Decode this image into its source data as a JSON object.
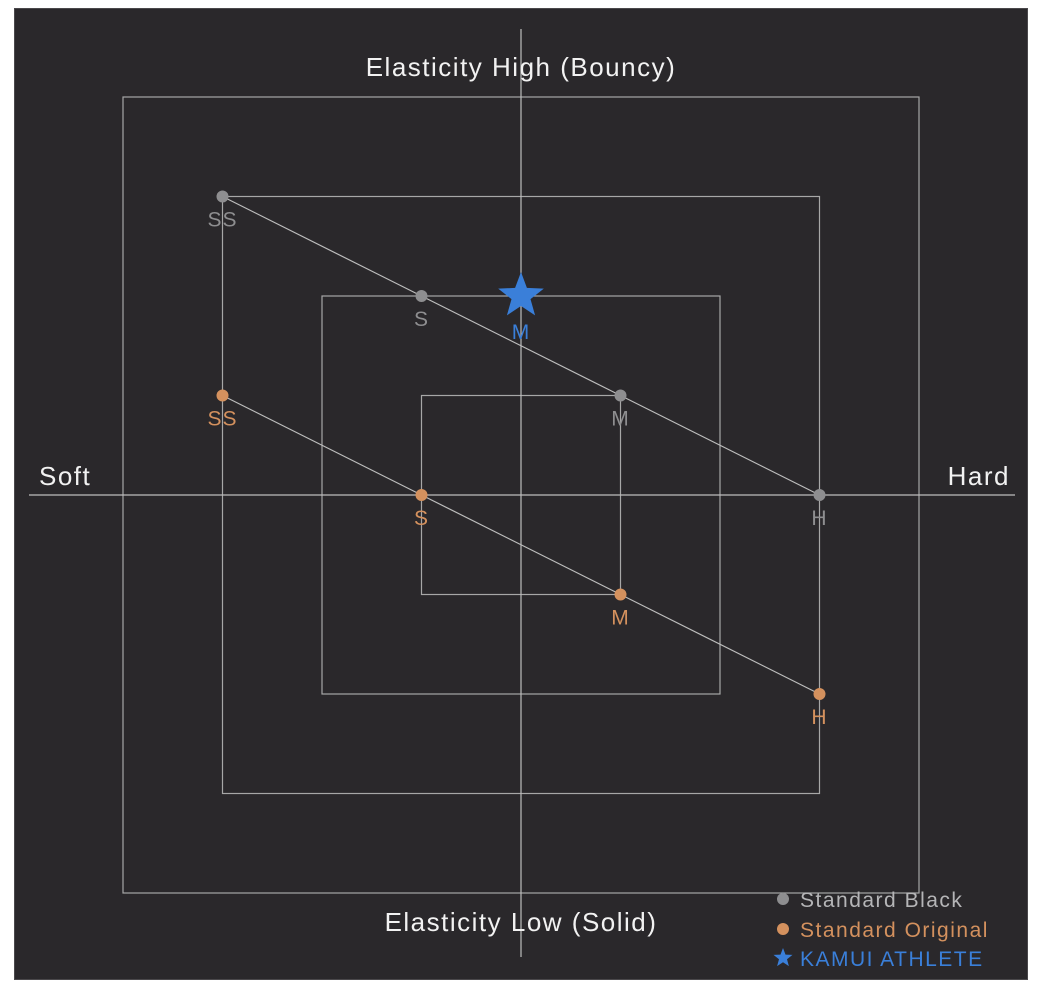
{
  "chart_data": {
    "type": "scatter",
    "top_label": "Elasticity High (Bouncy)",
    "bottom_label": "Elasticity Low (Solid)",
    "left_label": "Soft",
    "right_label": "Hard",
    "xlim": [
      -5,
      5
    ],
    "ylim": [
      -5,
      5
    ],
    "grid_squares": [
      4,
      3,
      2,
      1
    ],
    "series": [
      {
        "name": "Standard Black",
        "color": "#8e8e90",
        "marker": "circle",
        "points": [
          {
            "label": "SS",
            "x": -3,
            "y": 3
          },
          {
            "label": "S",
            "x": -1,
            "y": 2
          },
          {
            "label": "M",
            "x": 1,
            "y": 1
          },
          {
            "label": "H",
            "x": 3,
            "y": 0
          }
        ]
      },
      {
        "name": "Standard Original",
        "color": "#d4915e",
        "marker": "circle",
        "points": [
          {
            "label": "SS",
            "x": -3,
            "y": 1
          },
          {
            "label": "S",
            "x": -1,
            "y": 0
          },
          {
            "label": "M",
            "x": 1,
            "y": -1
          },
          {
            "label": "H",
            "x": 3,
            "y": -2
          }
        ]
      },
      {
        "name": "KAMUI ATHLETE",
        "color": "#3a7fd9",
        "marker": "star",
        "points": [
          {
            "label": "M",
            "x": 0,
            "y": 2
          }
        ]
      }
    ],
    "legend_position": "bottom-right"
  },
  "colors": {
    "background": "#2a282b",
    "grid": "#bdbdbd",
    "axis_text": "#f2f2f2"
  }
}
